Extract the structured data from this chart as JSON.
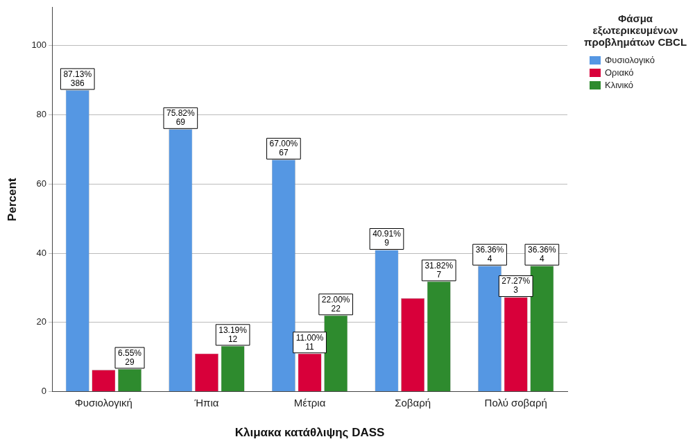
{
  "chart_data": {
    "type": "bar",
    "xlabel": "Κλιμακα κατάθλιψης DASS",
    "ylabel": "Percent",
    "legend_title": "Φάσμα εξωτερικευμένων προβλημάτων CBCL",
    "legend": "top right",
    "grid": "y",
    "categories": [
      "Φυσιολογική",
      "Ήπια",
      "Μέτρια",
      "Σοβαρή",
      "Πολύ σοβαρή"
    ],
    "ylim": [
      0,
      111
    ],
    "yticks": [
      0,
      20,
      40,
      60,
      80,
      100
    ],
    "series": [
      {
        "name": "Φυσιολογικό",
        "color": "#5597e3",
        "values": [
          87.13,
          75.82,
          67.0,
          40.91,
          36.36
        ],
        "value_labels": [
          "87.13%\n386",
          "75.82%\n69",
          "67.00%\n67",
          "40.91%\n9",
          "36.36%\n4"
        ]
      },
      {
        "name": "Οριακό",
        "color": "#d8003a",
        "values": [
          6.3,
          11,
          11.0,
          27,
          27.27
        ],
        "value_labels": [
          null,
          null,
          "11.00%\n11",
          null,
          "27.27%\n3"
        ]
      },
      {
        "name": "Κλινικό",
        "color": "#2e8b2e",
        "values": [
          6.55,
          13.19,
          22.0,
          31.82,
          36.36
        ],
        "value_labels": [
          "6.55%\n29",
          "13.19%\n12",
          "22.00%\n22",
          "31.82%\n7",
          "36.36%\n4"
        ]
      }
    ]
  }
}
